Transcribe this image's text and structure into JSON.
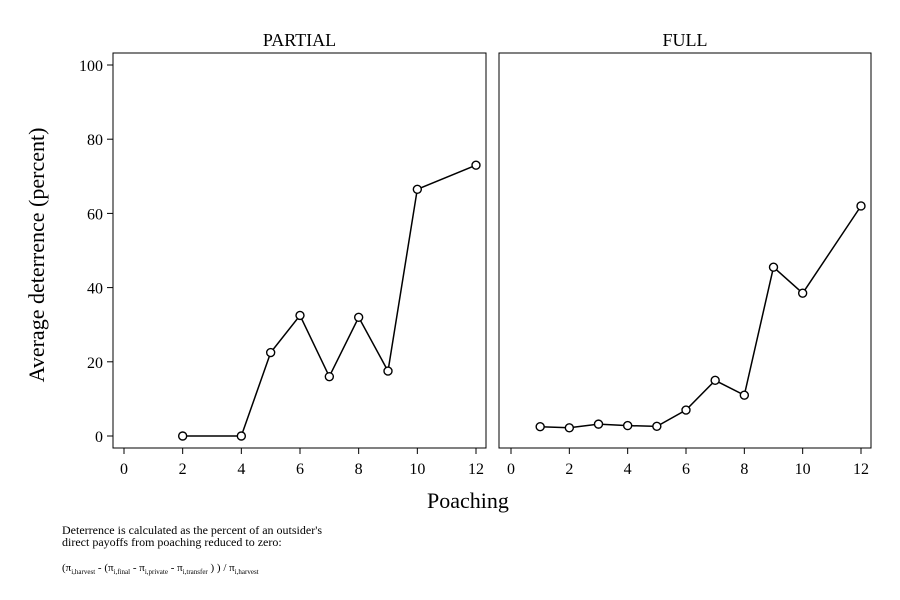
{
  "chart_data": {
    "type": "line",
    "ylabel": "Average deterrence (percent)",
    "xlabel": "Poaching",
    "ylim": [
      0,
      100
    ],
    "yticks": [
      0,
      20,
      40,
      60,
      80,
      100
    ],
    "xticks": [
      0,
      2,
      4,
      6,
      8,
      10,
      12
    ],
    "grid": false,
    "marker": "hollow-circle",
    "panels": [
      {
        "title": "PARTIAL",
        "x": [
          2,
          4,
          5,
          6,
          7,
          8,
          9,
          10,
          12
        ],
        "values": [
          0,
          0,
          22.5,
          32.5,
          16,
          32,
          17.5,
          66.5,
          73
        ]
      },
      {
        "title": "FULL",
        "x": [
          1,
          2,
          3,
          4,
          5,
          6,
          7,
          8,
          9,
          10,
          12
        ],
        "values": [
          2.5,
          2.2,
          3.2,
          2.8,
          2.6,
          7,
          15,
          11,
          45.5,
          38.5,
          62
        ]
      }
    ]
  },
  "note": {
    "line1": "Deterrence is calculated as the percent of an outsider's",
    "line2": "direct payoffs from poaching reduced to zero:",
    "formula": {
      "pi": "π",
      "open": "(",
      "sub_harvest": "i,harvest",
      "minus_open": " - (",
      "sub_final": "i,final",
      "minus": " - ",
      "sub_private": "i,private",
      "sub_transfer": "i,transfer",
      "close_div": " ) ) / ",
      "sub_harvest2": "i,harvest"
    }
  }
}
